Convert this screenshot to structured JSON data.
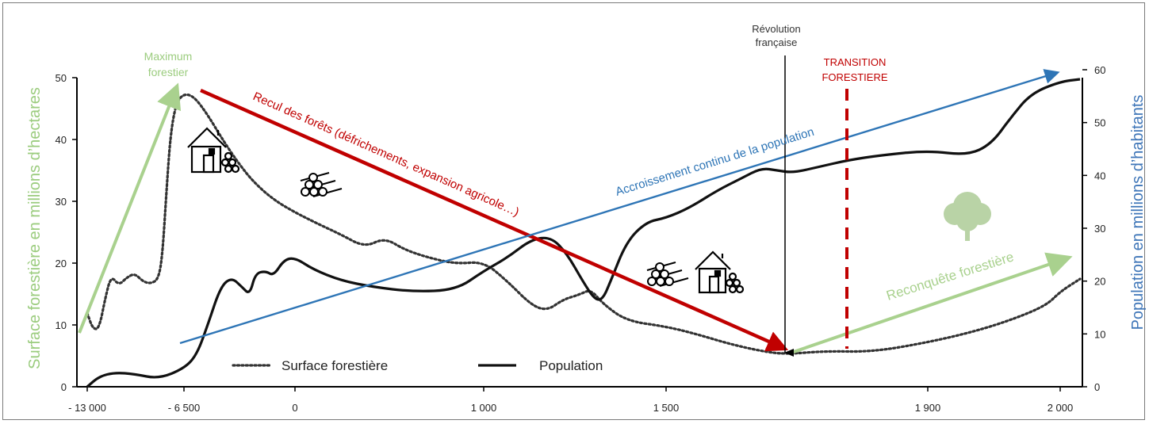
{
  "chart_data": {
    "type": "line",
    "x_tick_labels": [
      "- 13 000",
      "- 6 500",
      "0",
      "1 000",
      "1 500",
      "1 900",
      "2 000"
    ],
    "y_left": {
      "label": "Surface forestière en millions d’hectares",
      "ticks": [
        "0",
        "10",
        "20",
        "30",
        "40",
        "50"
      ],
      "range": [
        0,
        50
      ],
      "color": "#9bcc7e"
    },
    "y_right": {
      "label": "Population en millions d’habitants",
      "ticks": [
        "0",
        "10",
        "20",
        "30",
        "40",
        "50",
        "60"
      ],
      "range": [
        0,
        60
      ],
      "color": "#3f76b8"
    },
    "legend": {
      "position": "bottom-center",
      "items": [
        {
          "label": "Surface forestière",
          "style": "dotted"
        },
        {
          "label": "Population",
          "style": "solid"
        }
      ]
    },
    "series": [
      {
        "name": "Surface forestière",
        "style": "dotted",
        "axis": "left",
        "points": [
          {
            "x": "- 13 000",
            "y": 11
          },
          {
            "x": "- 6 500",
            "y": 47
          },
          {
            "x": "0",
            "y": 30
          },
          {
            "x": "1 000",
            "y": 20
          },
          {
            "x": "1 500",
            "y": 9
          },
          {
            "x": "1 900",
            "y": 8
          },
          {
            "x": "2 000",
            "y": 17
          }
        ]
      },
      {
        "name": "Population",
        "style": "solid",
        "axis": "right",
        "points": [
          {
            "x": "- 13 000",
            "y": 0
          },
          {
            "x": "- 6 500",
            "y": 2
          },
          {
            "x": "0",
            "y": 25
          },
          {
            "x": "1 000",
            "y": 23
          },
          {
            "x": "1 500",
            "y": 32
          },
          {
            "x": "1 900",
            "y": 46
          },
          {
            "x": "2 000",
            "y": 60
          }
        ]
      }
    ],
    "annotations": {
      "maximum": "Maximum\nforestier",
      "recul": "Recul des forêts (défrichements, expansion agricole…)",
      "accroissement": "Accroissement continu de la population",
      "revolution": "Révolution\nfrançaise",
      "transition": "TRANSITION\nFORESTIERE",
      "reconquete": "Reconquête forestière"
    },
    "colors": {
      "recul": "#c00000",
      "accroissement": "#2e75b6",
      "reconquete": "#a9d18e",
      "transition": "#c00000",
      "curves": "#000000"
    },
    "icons": [
      "house-icon",
      "log-pile-icon",
      "log-pile-icon",
      "house-icon",
      "tree-icon"
    ]
  }
}
